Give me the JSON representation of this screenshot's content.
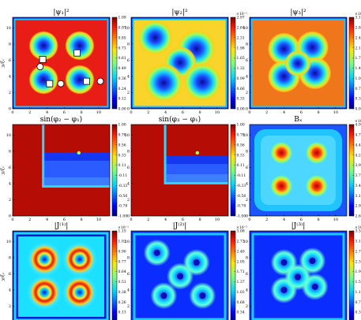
{
  "chart_data": [
    {
      "type": "heatmap",
      "title": "|ψ₁|²",
      "scale_label": "",
      "colorbar_ticks": [
        "0.00",
        "0.12",
        "0.24",
        "0.36",
        "0.49",
        "0.61",
        "0.73",
        "0.85",
        "0.97",
        "1.09"
      ],
      "xlabel": "",
      "ylabel": "y/ξ₁",
      "xticks": [
        "0",
        "2",
        "4",
        "6",
        "8",
        "10"
      ],
      "yticks": [
        "0",
        "2",
        "4",
        "6",
        "8",
        "10"
      ],
      "xlim": [
        0,
        11.3
      ],
      "ylim": [
        0,
        11.3
      ],
      "background": "#e81d16",
      "vortices": [
        {
          "x": 3.6,
          "y": 7.8,
          "r": 0.9
        },
        {
          "x": 7.8,
          "y": 7.8,
          "r": 0.9
        },
        {
          "x": 3.6,
          "y": 3.6,
          "r": 0.9
        },
        {
          "x": 7.8,
          "y": 3.6,
          "r": 0.9
        }
      ],
      "markers": [
        {
          "shape": "square",
          "x": 3.5,
          "y": 6.1
        },
        {
          "shape": "square",
          "x": 7.5,
          "y": 6.9
        },
        {
          "shape": "square",
          "x": 4.3,
          "y": 3.1
        },
        {
          "shape": "square",
          "x": 8.6,
          "y": 3.4
        },
        {
          "shape": "circle",
          "x": 3.2,
          "y": 5.2
        },
        {
          "shape": "circle",
          "x": 5.6,
          "y": 3.1
        },
        {
          "shape": "circle",
          "x": 10.2,
          "y": 3.4
        }
      ]
    },
    {
      "type": "heatmap",
      "title": "|ψ₂|²",
      "scale_label": "×10⁻¹",
      "colorbar_ticks": [
        "0.00",
        "0.33",
        "0.66",
        "0.99",
        "1.32",
        "1.65",
        "1.98",
        "2.31",
        "2.64",
        "2.97"
      ],
      "xlabel": "",
      "ylabel": "",
      "xticks": [
        "0",
        "2",
        "4",
        "6",
        "8",
        "10"
      ],
      "yticks": [
        "0",
        "2",
        "4",
        "6",
        "8",
        "10"
      ],
      "xlim": [
        0,
        11.3
      ],
      "ylim": [
        0,
        11.3
      ],
      "background": "#f9d42a",
      "vortices": [
        {
          "x": 2.8,
          "y": 8.8,
          "r": 1.1
        },
        {
          "x": 7.6,
          "y": 7.4,
          "r": 1.2
        },
        {
          "x": 5.7,
          "y": 5.7,
          "r": 1.0
        },
        {
          "x": 3.8,
          "y": 3.2,
          "r": 1.2
        },
        {
          "x": 8.3,
          "y": 3.3,
          "r": 1.2
        }
      ]
    },
    {
      "type": "heatmap",
      "title": "|ψ₃|²",
      "scale_label": "×10⁻¹",
      "colorbar_ticks": [
        "0.00",
        "0.35",
        "0.70",
        "1.06",
        "1.41",
        "1.76",
        "2.11",
        "2.46",
        "2.82",
        "3.17"
      ],
      "xlabel": "",
      "ylabel": "",
      "xticks": [
        "0",
        "2",
        "4",
        "6",
        "8",
        "10"
      ],
      "yticks": [
        "0",
        "2",
        "4",
        "6",
        "8",
        "10"
      ],
      "xlim": [
        0,
        11.3
      ],
      "ylim": [
        0,
        11.3
      ],
      "background": "#f0761c",
      "vortices": [
        {
          "x": 4.0,
          "y": 7.4,
          "r": 1.0
        },
        {
          "x": 7.3,
          "y": 7.6,
          "r": 1.0
        },
        {
          "x": 4.0,
          "y": 4.0,
          "r": 1.0
        },
        {
          "x": 7.6,
          "y": 4.4,
          "r": 1.0
        },
        {
          "x": 5.6,
          "y": 5.6,
          "r": 0.8
        }
      ]
    },
    {
      "type": "heatmap",
      "title": "sin(φ₂ − φ₁)",
      "scale_label": "",
      "colorbar_ticks": [
        "-1.00",
        "-0.78",
        "-0.56",
        "-0.33",
        "-0.11",
        "0.11",
        "0.33",
        "0.56",
        "0.78",
        "1.00"
      ],
      "xlabel": "",
      "ylabel": "y/ξ₁",
      "xticks": [
        "0",
        "2",
        "4",
        "6",
        "8",
        "10"
      ],
      "yticks": [
        "0",
        "2",
        "4",
        "6",
        "8",
        "10"
      ],
      "xlim": [
        0,
        11.3
      ],
      "ylim": [
        0,
        11.3
      ]
    },
    {
      "type": "heatmap",
      "title": "sin(φ₃ − φ₁)",
      "scale_label": "",
      "colorbar_ticks": [
        "-1.00",
        "-0.78",
        "-0.56",
        "-0.33",
        "-0.11",
        "0.11",
        "0.33",
        "0.56",
        "0.78",
        "1.00"
      ],
      "xlabel": "",
      "ylabel": "",
      "xticks": [
        "0",
        "2",
        "4",
        "6",
        "8",
        "10"
      ],
      "yticks": [
        "0",
        "2",
        "4",
        "6",
        "8",
        "10"
      ],
      "xlim": [
        0,
        11.3
      ],
      "ylim": [
        0,
        11.3
      ]
    },
    {
      "type": "heatmap",
      "title": "Bₓ",
      "scale_label": "×10⁻¹",
      "colorbar_ticks": [
        "2.67",
        "2.92",
        "3.18",
        "3.44",
        "3.70",
        "3.95",
        "4.21",
        "4.47",
        "4.73",
        "4.98"
      ],
      "xlabel": "",
      "ylabel": "",
      "xticks": [
        "0",
        "2",
        "4",
        "6",
        "8",
        "10"
      ],
      "yticks": [
        "0",
        "2",
        "4",
        "6",
        "8",
        "10"
      ],
      "xlim": [
        0,
        11.3
      ],
      "ylim": [
        0,
        11.3
      ]
    },
    {
      "type": "heatmap",
      "title": "|J⁽¹⁾|",
      "scale_label": "×10⁻¹",
      "colorbar_ticks": [
        "0.00",
        "0.13",
        "0.26",
        "0.38",
        "0.51",
        "0.64",
        "0.77",
        "0.90",
        "1.02",
        "1.15"
      ],
      "xlabel": "x/ξ₁",
      "ylabel": "y/ξ₁",
      "xticks": [
        "0",
        "2",
        "4",
        "6",
        "8",
        "10"
      ],
      "yticks": [
        "0",
        "2",
        "4",
        "6",
        "8",
        "10"
      ],
      "xlim": [
        0,
        11.3
      ],
      "ylim": [
        0,
        11.3
      ]
    },
    {
      "type": "heatmap",
      "title": "|J⁽²⁾|",
      "scale_label": "×10⁻²",
      "colorbar_ticks": [
        "0.00",
        "0.34",
        "0.68",
        "1.03",
        "1.37",
        "1.71",
        "2.05",
        "2.40",
        "2.73",
        "3.08"
      ],
      "xlabel": "x/ξ₁",
      "ylabel": "",
      "xticks": [
        "0",
        "2",
        "4",
        "6",
        "8",
        "10"
      ],
      "yticks": [
        "0",
        "2",
        "4",
        "6",
        "8",
        "10"
      ],
      "xlim": [
        0,
        11.3
      ],
      "ylim": [
        0,
        11.3
      ]
    },
    {
      "type": "heatmap",
      "title": "|J⁽³⁾|",
      "scale_label": "×10⁻²",
      "colorbar_ticks": [
        "0.00",
        "0.39",
        "0.78",
        "1.18",
        "1.57",
        "1.96",
        "2.36",
        "2.75",
        "3.14",
        "3.53"
      ],
      "xlabel": "x/ξ₁",
      "ylabel": "",
      "xticks": [
        "0",
        "2",
        "4",
        "6",
        "8",
        "10"
      ],
      "yticks": [
        "0",
        "2",
        "4",
        "6",
        "8",
        "10"
      ],
      "xlim": [
        0,
        11.3
      ],
      "ylim": [
        0,
        11.3
      ]
    }
  ]
}
